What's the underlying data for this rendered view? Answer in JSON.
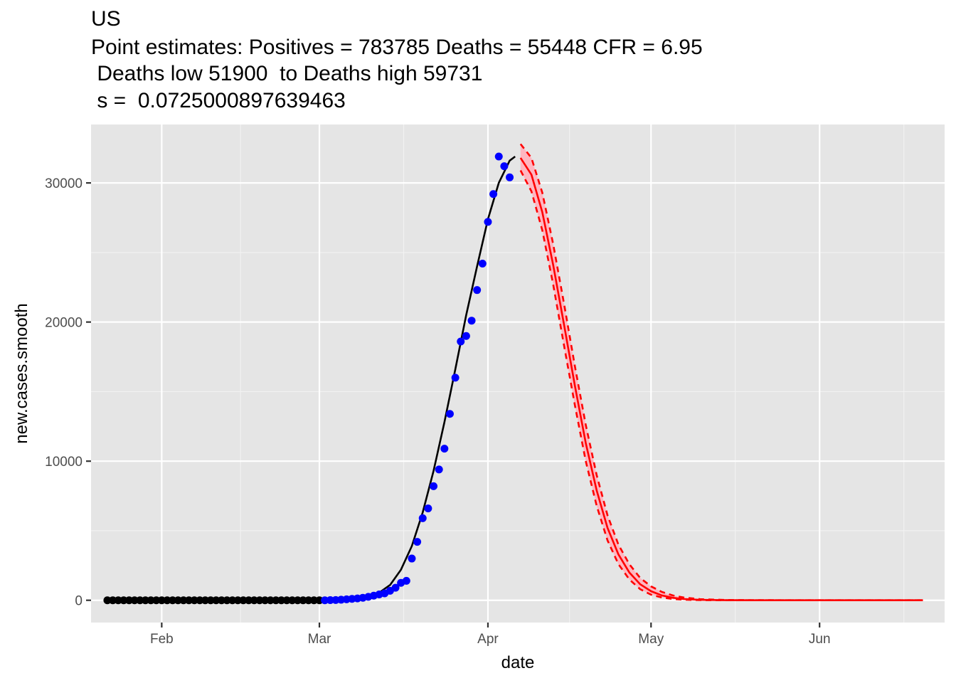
{
  "chart_data": {
    "type": "line",
    "title_lines": [
      "US",
      "Point estimates: Positives = 783785 Deaths = 55448 CFR = 6.95",
      " Deaths low 51900  to Deaths high 59731",
      " s =  0.0725000897639463"
    ],
    "xlabel": "date",
    "ylabel": "new.cases.smooth",
    "x_start": "2020-01-22",
    "xlim": [
      "2020-01-19",
      "2020-06-24"
    ],
    "ylim": [
      -1600,
      34200
    ],
    "x_ticks": [
      {
        "date": "2020-02-01",
        "label": "Feb"
      },
      {
        "date": "2020-03-01",
        "label": "Mar"
      },
      {
        "date": "2020-04-01",
        "label": "Apr"
      },
      {
        "date": "2020-05-01",
        "label": "May"
      },
      {
        "date": "2020-06-01",
        "label": "Jun"
      }
    ],
    "y_ticks": [
      0,
      10000,
      20000,
      30000
    ],
    "grid": true,
    "background": "#e5e5e5",
    "colors": {
      "zero_points": "#000000",
      "observed_points": "#0000ff",
      "fit_line": "#000000",
      "forecast_line": "#ff0000",
      "band_fill": "#ffb6c1"
    },
    "series": [
      {
        "name": "",
        "kind": "points",
        "color": "#000000",
        "points": [
          [
            "2020-01-22",
            0
          ],
          [
            "2020-01-23",
            0
          ],
          [
            "2020-01-24",
            0
          ],
          [
            "2020-01-25",
            0
          ],
          [
            "2020-01-26",
            0
          ],
          [
            "2020-01-27",
            0
          ],
          [
            "2020-01-28",
            0
          ],
          [
            "2020-01-29",
            0
          ],
          [
            "2020-01-30",
            0
          ],
          [
            "2020-01-31",
            0
          ],
          [
            "2020-02-01",
            0
          ],
          [
            "2020-02-02",
            0
          ],
          [
            "2020-02-03",
            0
          ],
          [
            "2020-02-04",
            0
          ],
          [
            "2020-02-05",
            0
          ],
          [
            "2020-02-06",
            0
          ],
          [
            "2020-02-07",
            0
          ],
          [
            "2020-02-08",
            0
          ],
          [
            "2020-02-09",
            0
          ],
          [
            "2020-02-10",
            0
          ],
          [
            "2020-02-11",
            0
          ],
          [
            "2020-02-12",
            0
          ],
          [
            "2020-02-13",
            0
          ],
          [
            "2020-02-14",
            0
          ],
          [
            "2020-02-15",
            0
          ],
          [
            "2020-02-16",
            0
          ],
          [
            "2020-02-17",
            0
          ],
          [
            "2020-02-18",
            0
          ],
          [
            "2020-02-19",
            0
          ],
          [
            "2020-02-20",
            0
          ],
          [
            "2020-02-21",
            0
          ],
          [
            "2020-02-22",
            0
          ],
          [
            "2020-02-23",
            0
          ],
          [
            "2020-02-24",
            0
          ],
          [
            "2020-02-25",
            0
          ],
          [
            "2020-02-26",
            0
          ],
          [
            "2020-02-27",
            0
          ],
          [
            "2020-02-28",
            0
          ],
          [
            "2020-02-29",
            0
          ],
          [
            "2020-03-01",
            0
          ]
        ]
      },
      {
        "name": "",
        "kind": "points",
        "color": "#0000ff",
        "points": [
          [
            "2020-03-02",
            0
          ],
          [
            "2020-03-03",
            10
          ],
          [
            "2020-03-04",
            20
          ],
          [
            "2020-03-05",
            40
          ],
          [
            "2020-03-06",
            70
          ],
          [
            "2020-03-07",
            100
          ],
          [
            "2020-03-08",
            130
          ],
          [
            "2020-03-09",
            180
          ],
          [
            "2020-03-10",
            250
          ],
          [
            "2020-03-11",
            330
          ],
          [
            "2020-03-12",
            420
          ],
          [
            "2020-03-13",
            500
          ],
          [
            "2020-03-14",
            680
          ],
          [
            "2020-03-15",
            900
          ],
          [
            "2020-03-16",
            1250
          ],
          [
            "2020-03-17",
            1400
          ],
          [
            "2020-03-18",
            3000
          ],
          [
            "2020-03-19",
            4200
          ],
          [
            "2020-03-20",
            5900
          ],
          [
            "2020-03-21",
            6600
          ],
          [
            "2020-03-22",
            8200
          ],
          [
            "2020-03-23",
            9400
          ],
          [
            "2020-03-24",
            10900
          ],
          [
            "2020-03-25",
            13400
          ],
          [
            "2020-03-26",
            16000
          ],
          [
            "2020-03-27",
            18600
          ],
          [
            "2020-03-28",
            19000
          ],
          [
            "2020-03-29",
            20100
          ],
          [
            "2020-03-30",
            22300
          ],
          [
            "2020-03-31",
            24200
          ],
          [
            "2020-04-01",
            27200
          ],
          [
            "2020-04-02",
            29200
          ],
          [
            "2020-04-03",
            31900
          ],
          [
            "2020-04-04",
            31200
          ],
          [
            "2020-04-05",
            30400
          ]
        ]
      },
      {
        "name": "",
        "kind": "line",
        "color": "#000000",
        "dash": false,
        "points": [
          [
            "2020-03-02",
            0
          ],
          [
            "2020-03-05",
            20
          ],
          [
            "2020-03-08",
            100
          ],
          [
            "2020-03-10",
            250
          ],
          [
            "2020-03-12",
            550
          ],
          [
            "2020-03-14",
            1100
          ],
          [
            "2020-03-16",
            2200
          ],
          [
            "2020-03-18",
            3900
          ],
          [
            "2020-03-20",
            6300
          ],
          [
            "2020-03-22",
            9300
          ],
          [
            "2020-03-24",
            12800
          ],
          [
            "2020-03-26",
            16600
          ],
          [
            "2020-03-28",
            20500
          ],
          [
            "2020-03-30",
            24000
          ],
          [
            "2020-04-01",
            27400
          ],
          [
            "2020-04-03",
            30000
          ],
          [
            "2020-04-05",
            31600
          ],
          [
            "2020-04-06",
            31900
          ]
        ]
      },
      {
        "name": "",
        "kind": "band",
        "color": "#ffb6c1",
        "points": [
          [
            "2020-04-07",
            30900,
            32800
          ],
          [
            "2020-04-09",
            29400,
            31800
          ],
          [
            "2020-04-11",
            26600,
            29300
          ],
          [
            "2020-04-13",
            22700,
            25600
          ],
          [
            "2020-04-15",
            18300,
            21300
          ],
          [
            "2020-04-17",
            14000,
            16800
          ],
          [
            "2020-04-19",
            10000,
            12600
          ],
          [
            "2020-04-21",
            6800,
            9000
          ],
          [
            "2020-04-23",
            4300,
            6100
          ],
          [
            "2020-04-25",
            2600,
            4000
          ],
          [
            "2020-04-27",
            1500,
            2600
          ],
          [
            "2020-04-29",
            800,
            1600
          ],
          [
            "2020-05-01",
            400,
            1000
          ],
          [
            "2020-05-03",
            200,
            600
          ],
          [
            "2020-05-05",
            90,
            350
          ],
          [
            "2020-05-07",
            40,
            200
          ],
          [
            "2020-05-10",
            10,
            80
          ],
          [
            "2020-05-15",
            0,
            20
          ],
          [
            "2020-05-20",
            0,
            5
          ],
          [
            "2020-06-20",
            0,
            0
          ]
        ]
      },
      {
        "name": "",
        "kind": "line",
        "color": "#ff0000",
        "dash": false,
        "points": [
          [
            "2020-04-07",
            31800
          ],
          [
            "2020-04-09",
            30600
          ],
          [
            "2020-04-11",
            27900
          ],
          [
            "2020-04-13",
            24100
          ],
          [
            "2020-04-15",
            19800
          ],
          [
            "2020-04-17",
            15400
          ],
          [
            "2020-04-19",
            11300
          ],
          [
            "2020-04-21",
            7900
          ],
          [
            "2020-04-23",
            5200
          ],
          [
            "2020-04-25",
            3300
          ],
          [
            "2020-04-27",
            2000
          ],
          [
            "2020-04-29",
            1150
          ],
          [
            "2020-05-01",
            650
          ],
          [
            "2020-05-03",
            350
          ],
          [
            "2020-05-05",
            180
          ],
          [
            "2020-05-07",
            90
          ],
          [
            "2020-05-10",
            30
          ],
          [
            "2020-05-15",
            5
          ],
          [
            "2020-05-20",
            0
          ],
          [
            "2020-06-20",
            0
          ]
        ]
      },
      {
        "name": "",
        "kind": "line",
        "color": "#ff0000",
        "dash": true,
        "points": [
          [
            "2020-04-07",
            32800
          ],
          [
            "2020-04-09",
            31800
          ],
          [
            "2020-04-11",
            29300
          ],
          [
            "2020-04-13",
            25600
          ],
          [
            "2020-04-15",
            21300
          ],
          [
            "2020-04-17",
            16800
          ],
          [
            "2020-04-19",
            12600
          ],
          [
            "2020-04-21",
            9000
          ],
          [
            "2020-04-23",
            6100
          ],
          [
            "2020-04-25",
            4000
          ],
          [
            "2020-04-27",
            2600
          ],
          [
            "2020-04-29",
            1600
          ],
          [
            "2020-05-01",
            1000
          ],
          [
            "2020-05-03",
            600
          ],
          [
            "2020-05-05",
            350
          ],
          [
            "2020-05-07",
            200
          ],
          [
            "2020-05-10",
            80
          ],
          [
            "2020-05-15",
            20
          ],
          [
            "2020-05-20",
            5
          ],
          [
            "2020-06-20",
            0
          ]
        ]
      },
      {
        "name": "",
        "kind": "line",
        "color": "#ff0000",
        "dash": true,
        "points": [
          [
            "2020-04-07",
            30900
          ],
          [
            "2020-04-09",
            29400
          ],
          [
            "2020-04-11",
            26600
          ],
          [
            "2020-04-13",
            22700
          ],
          [
            "2020-04-15",
            18300
          ],
          [
            "2020-04-17",
            14000
          ],
          [
            "2020-04-19",
            10000
          ],
          [
            "2020-04-21",
            6800
          ],
          [
            "2020-04-23",
            4300
          ],
          [
            "2020-04-25",
            2600
          ],
          [
            "2020-04-27",
            1500
          ],
          [
            "2020-04-29",
            800
          ],
          [
            "2020-05-01",
            400
          ],
          [
            "2020-05-03",
            200
          ],
          [
            "2020-05-05",
            90
          ],
          [
            "2020-05-07",
            40
          ],
          [
            "2020-05-10",
            10
          ],
          [
            "2020-05-15",
            0
          ],
          [
            "2020-05-20",
            0
          ],
          [
            "2020-06-20",
            0
          ]
        ]
      }
    ]
  }
}
